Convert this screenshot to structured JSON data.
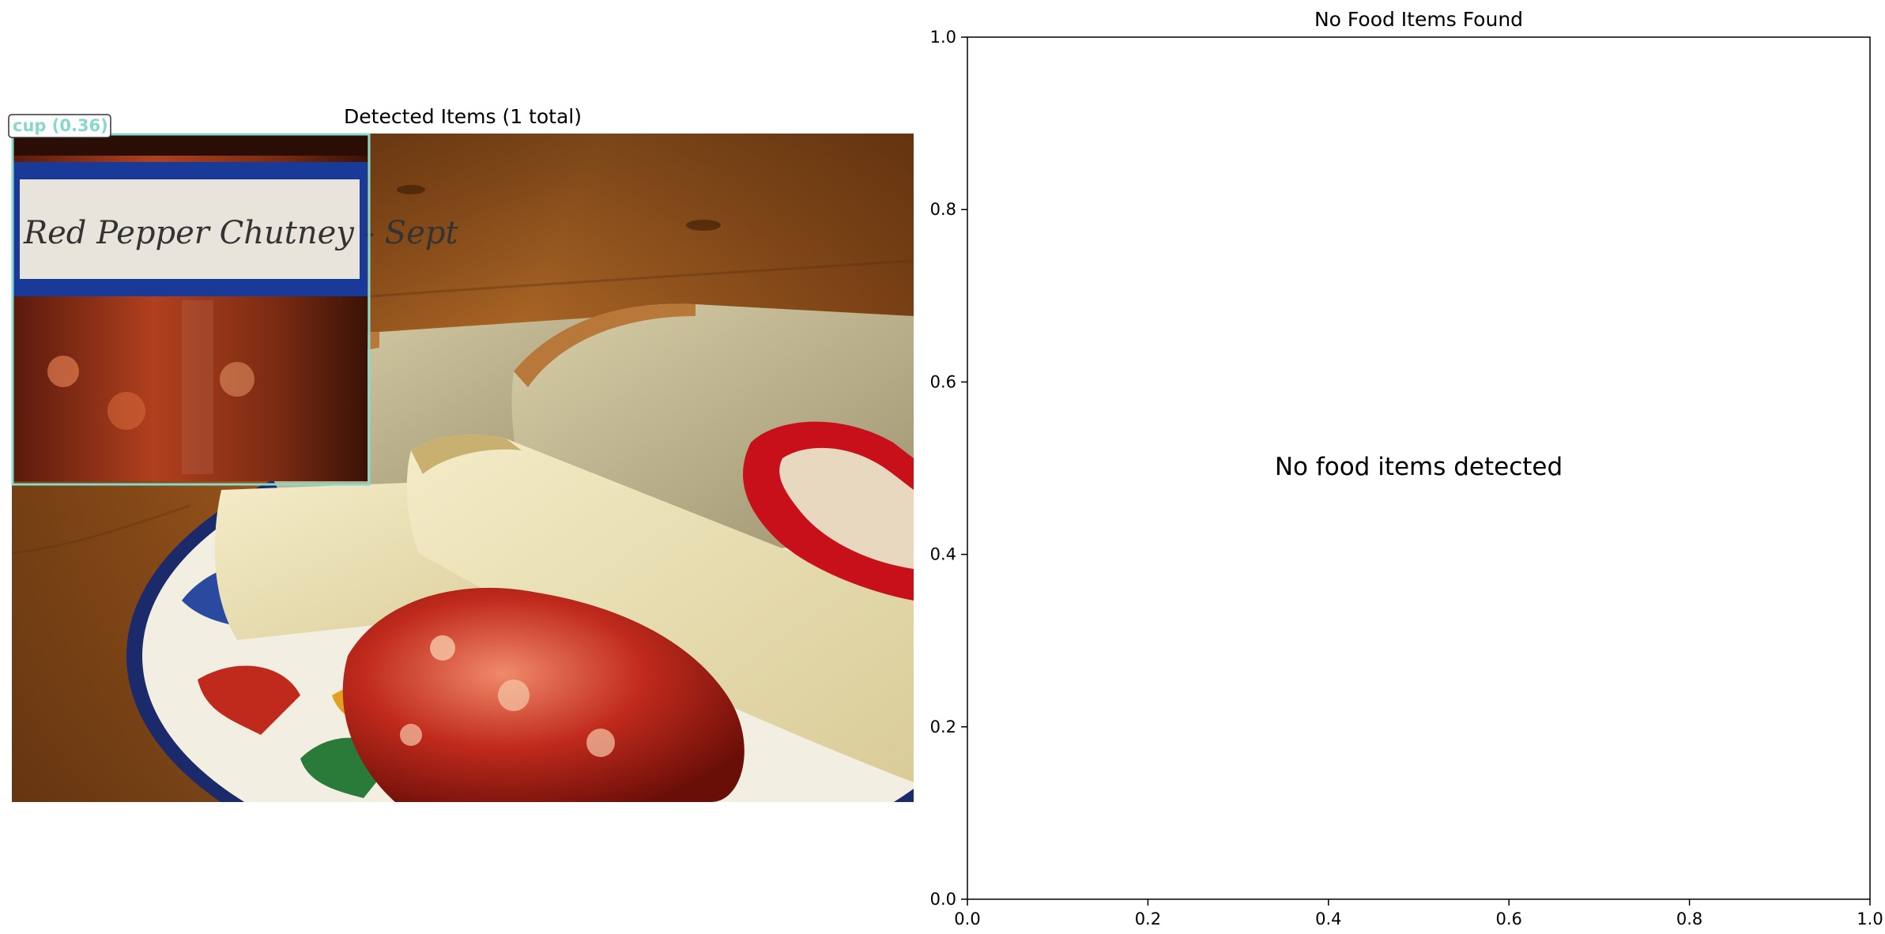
{
  "left_panel": {
    "title": "Detected Items (1 total)",
    "detections": [
      {
        "label": "cup (0.36)",
        "color": "#88d8cc"
      }
    ],
    "photo": {
      "jar_label_text": "Red Pepper Chutney - Sept"
    }
  },
  "right_panel": {
    "title": "No Food Items Found",
    "message": "No food items detected"
  },
  "chart_data": {
    "type": "scatter",
    "title": "No Food Items Found",
    "series": [],
    "xlim": [
      0.0,
      1.0
    ],
    "ylim": [
      0.0,
      1.0
    ],
    "xticks": [
      "0.0",
      "0.2",
      "0.4",
      "0.6",
      "0.8",
      "1.0"
    ],
    "yticks": [
      "0.0",
      "0.2",
      "0.4",
      "0.6",
      "0.8",
      "1.0"
    ],
    "annotation": "No food items detected",
    "grid": false
  }
}
